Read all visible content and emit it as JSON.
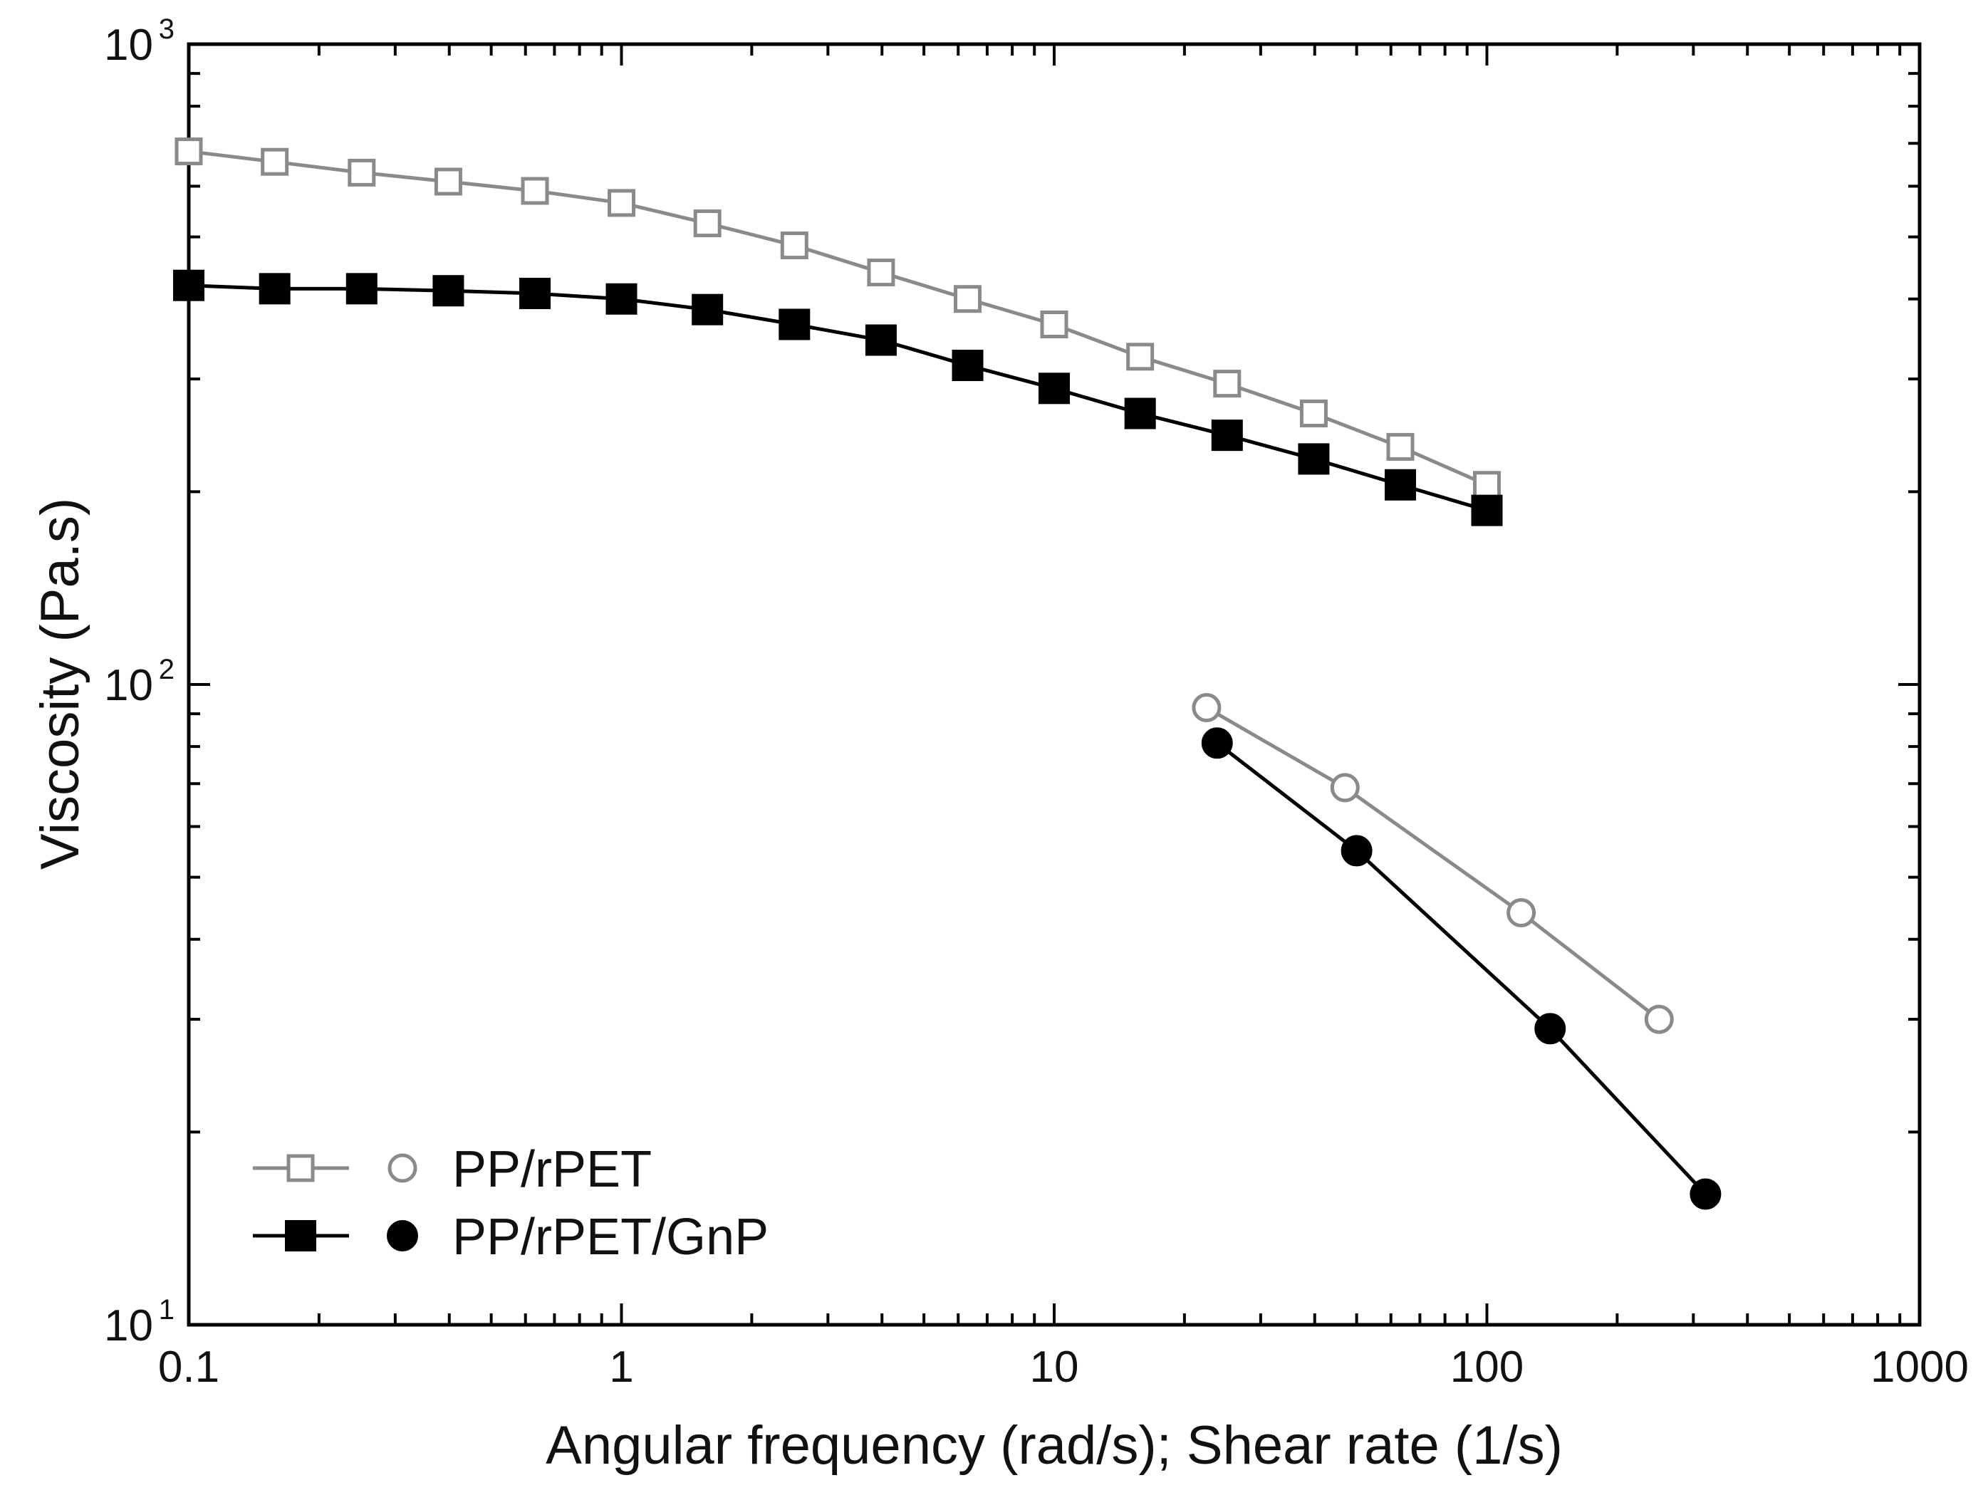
{
  "chart_data": {
    "type": "scatter",
    "title": "",
    "xlabel": "Angular frequency (rad/s); Shear rate (1/s)",
    "ylabel": "Viscosity (Pa.s)",
    "xscale": "log",
    "yscale": "log",
    "xlim": [
      0.1,
      1000
    ],
    "ylim": [
      10,
      1000
    ],
    "x_tick_labels": [
      "0.1",
      "1",
      "10",
      "100",
      "1000"
    ],
    "y_tick_labels": [
      {
        "base": "10",
        "exp": "1",
        "value": 10
      },
      {
        "base": "10",
        "exp": "2",
        "value": 100
      },
      {
        "base": "10",
        "exp": "3",
        "value": 1000
      }
    ],
    "legend_position": "bottom-left",
    "grid": false,
    "series": [
      {
        "name": "PP/rPET",
        "measurement": "oscillatory",
        "marker": "open-square",
        "color": "#8a8a8a",
        "x": [
          0.1,
          0.158,
          0.251,
          0.398,
          0.631,
          1.0,
          1.58,
          2.51,
          3.98,
          6.31,
          10.0,
          15.8,
          25.1,
          39.8,
          63.1,
          100
        ],
        "y": [
          680,
          655,
          630,
          610,
          590,
          565,
          525,
          485,
          440,
          400,
          365,
          325,
          295,
          265,
          235,
          205
        ]
      },
      {
        "name": "PP/rPET/GnP",
        "measurement": "oscillatory",
        "marker": "filled-square",
        "color": "#000000",
        "x": [
          0.1,
          0.158,
          0.251,
          0.398,
          0.631,
          1.0,
          1.58,
          2.51,
          3.98,
          6.31,
          10.0,
          15.8,
          25.1,
          39.8,
          63.1,
          100
        ],
        "y": [
          420,
          415,
          415,
          412,
          408,
          400,
          385,
          365,
          345,
          315,
          290,
          265,
          245,
          225,
          205,
          187
        ]
      },
      {
        "name": "PP/rPET",
        "measurement": "capillary",
        "marker": "open-circle",
        "color": "#8a8a8a",
        "x": [
          22.5,
          47,
          120,
          250
        ],
        "y": [
          92,
          69,
          44,
          30
        ]
      },
      {
        "name": "PP/rPET/GnP",
        "measurement": "capillary",
        "marker": "filled-circle",
        "color": "#000000",
        "x": [
          23.8,
          50,
          140,
          320
        ],
        "y": [
          81,
          55,
          29,
          16
        ]
      }
    ],
    "legend": [
      {
        "label": "PP/rPET",
        "color": "#8a8a8a",
        "filled": false
      },
      {
        "label": "PP/rPET/GnP",
        "color": "#000000",
        "filled": true
      }
    ]
  }
}
